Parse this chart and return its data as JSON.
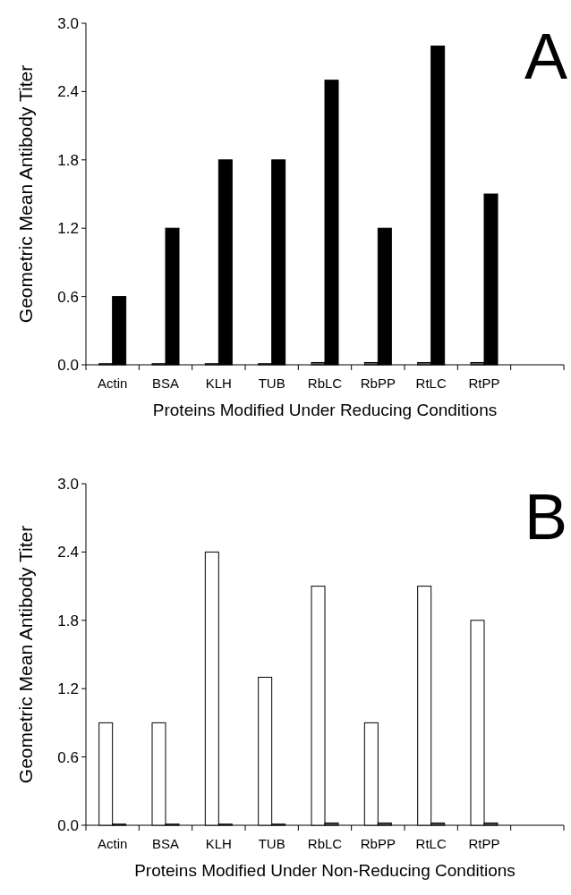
{
  "chart_data": [
    {
      "type": "bar",
      "categories": [
        "Actin",
        "BSA",
        "KLH",
        "TUB",
        "RbLC",
        "RbPP",
        "RtLC",
        "RtPP",
        null
      ],
      "series": [
        {
          "color": "#555555",
          "values": [
            0.01,
            0.01,
            0.01,
            0.01,
            0.02,
            0.02,
            0.02,
            0.02,
            null
          ]
        },
        {
          "color": "#000000",
          "values": [
            0.6,
            1.2,
            1.8,
            1.8,
            2.5,
            1.2,
            2.8,
            1.5,
            null
          ]
        }
      ],
      "ylim": [
        0,
        3
      ],
      "yticks": [
        {
          "value": 0,
          "label": "0.0"
        },
        {
          "value": 0.6,
          "label": "0.6"
        },
        {
          "value": 1.2,
          "label": "1.2"
        },
        {
          "value": 1.8,
          "label": "1.8"
        },
        {
          "value": 2.4,
          "label": "2.4"
        },
        {
          "value": 3,
          "label": "3.0"
        }
      ],
      "xlabel": "Proteins Modified Under Reducing Conditions",
      "ylabel": "Geometric Mean Antibody Titer",
      "annotations": [
        "A"
      ]
    },
    {
      "type": "bar",
      "categories": [
        "Actin",
        "BSA",
        "KLH",
        "TUB",
        "RbLC",
        "RbPP",
        "RtLC",
        "RtPP",
        null
      ],
      "series": [
        {
          "color": "#ffffff",
          "values": [
            0.9,
            0.9,
            2.4,
            1.3,
            2.1,
            0.9,
            2.1,
            1.8,
            null
          ]
        },
        {
          "color": "#555555",
          "values": [
            0.01,
            0.01,
            0.01,
            0.01,
            0.02,
            0.02,
            0.02,
            0.02,
            null
          ]
        }
      ],
      "ylim": [
        0,
        3
      ],
      "yticks": [
        {
          "value": 0,
          "label": "0.0"
        },
        {
          "value": 0.6,
          "label": "0.6"
        },
        {
          "value": 1.2,
          "label": "1.2"
        },
        {
          "value": 1.8,
          "label": "1.8"
        },
        {
          "value": 2.4,
          "label": "2.4"
        },
        {
          "value": 3,
          "label": "3.0"
        }
      ],
      "xlabel": "Proteins Modified Under Non-Reducing Conditions",
      "ylabel": "Geometric Mean Antibody Titer",
      "annotations": [
        "B"
      ]
    }
  ]
}
